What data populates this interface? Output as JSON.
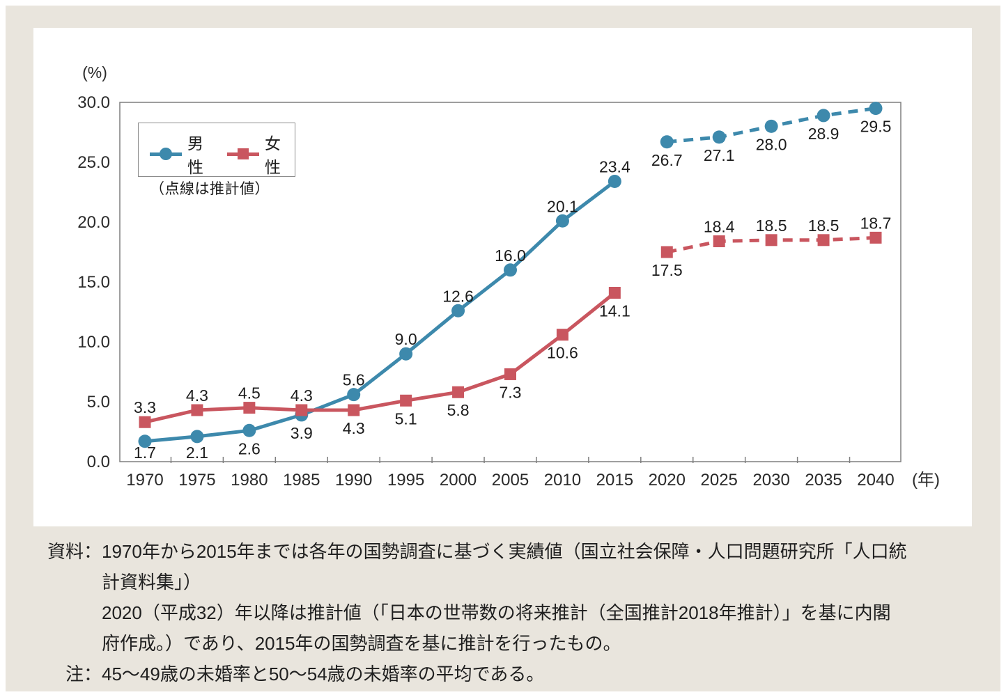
{
  "page": {
    "background": "#e9e5dd",
    "card_background": "#ffffff"
  },
  "chart_data": {
    "type": "line",
    "title": "",
    "y_axis_unit": "(%)",
    "x_axis_unit": "(年)",
    "x": [
      1970,
      1975,
      1980,
      1985,
      1990,
      1995,
      2000,
      2005,
      2010,
      2015,
      2020,
      2025,
      2030,
      2035,
      2040
    ],
    "ylim": [
      0,
      30
    ],
    "yticks": [
      0,
      5,
      10,
      15,
      20,
      25,
      30
    ],
    "grid": false,
    "legend_position": "top-left-inside",
    "legend": {
      "note": "（点線は推計値）"
    },
    "projection_start_year": 2020,
    "axis_color": "#7f7f7f",
    "text_color": "#2a2a2a",
    "label_color": "#1c1c1c",
    "series": [
      {
        "name": "男性",
        "color": "#3d89ac",
        "marker": "circle",
        "values": [
          1.7,
          2.1,
          2.6,
          3.9,
          5.6,
          9.0,
          12.6,
          16.0,
          20.1,
          23.4,
          26.7,
          27.1,
          28.0,
          28.9,
          29.5
        ],
        "label_positions": [
          "below",
          "below",
          "below",
          "below",
          "above",
          "above",
          "above",
          "above",
          "above",
          "above",
          "below",
          "below",
          "below",
          "below",
          "below"
        ]
      },
      {
        "name": "女性",
        "color": "#c9565f",
        "marker": "square",
        "values": [
          3.3,
          4.3,
          4.5,
          4.3,
          4.3,
          5.1,
          5.8,
          7.3,
          10.6,
          14.1,
          17.5,
          18.4,
          18.5,
          18.5,
          18.7
        ],
        "label_positions": [
          "above",
          "above",
          "above",
          "above",
          "below",
          "below",
          "below",
          "below",
          "below",
          "below",
          "below",
          "above",
          "above",
          "above",
          "above"
        ]
      }
    ]
  },
  "notes": {
    "source_label": "資料：",
    "source_lines": [
      "1970年から2015年までは各年の国勢調査に基づく実績値（国立社会保障・人口問題研究所「人口統",
      "計資料集」）",
      "2020（平成32）年以降は推計値（「日本の世帯数の将来推計（全国推計2018年推計）」を基に内閣",
      "府作成。）であり、2015年の国勢調査を基に推計を行ったもの。"
    ],
    "note_label": "注：",
    "note_text": "45～49歳の未婚率と50～54歳の未婚率の平均である。"
  }
}
